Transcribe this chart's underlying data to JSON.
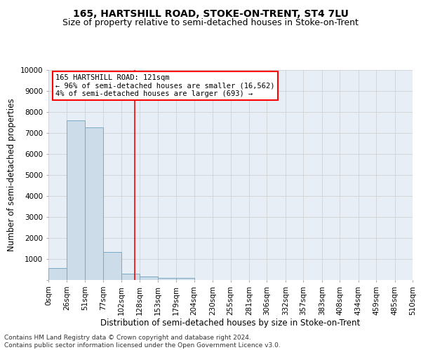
{
  "title": "165, HARTSHILL ROAD, STOKE-ON-TRENT, ST4 7LU",
  "subtitle": "Size of property relative to semi-detached houses in Stoke-on-Trent",
  "xlabel": "Distribution of semi-detached houses by size in Stoke-on-Trent",
  "ylabel": "Number of semi-detached properties",
  "footer": "Contains HM Land Registry data © Crown copyright and database right 2024.\nContains public sector information licensed under the Open Government Licence v3.0.",
  "bins": [
    0,
    26,
    51,
    77,
    102,
    128,
    153,
    179,
    204,
    230,
    255,
    281,
    306,
    332,
    357,
    383,
    408,
    434,
    459,
    485,
    510
  ],
  "bin_labels": [
    "0sqm",
    "26sqm",
    "51sqm",
    "77sqm",
    "102sqm",
    "128sqm",
    "153sqm",
    "179sqm",
    "204sqm",
    "230sqm",
    "255sqm",
    "281sqm",
    "306sqm",
    "332sqm",
    "357sqm",
    "383sqm",
    "408sqm",
    "434sqm",
    "459sqm",
    "485sqm",
    "510sqm"
  ],
  "bar_heights": [
    560,
    7600,
    7250,
    1350,
    310,
    155,
    100,
    90,
    0,
    0,
    0,
    0,
    0,
    0,
    0,
    0,
    0,
    0,
    0,
    0
  ],
  "bar_color": "#ccdce8",
  "bar_edgecolor": "#7aaac8",
  "property_value": 121,
  "property_line_color": "red",
  "annotation_text": "165 HARTSHILL ROAD: 121sqm\n← 96% of semi-detached houses are smaller (16,562)\n4% of semi-detached houses are larger (693) →",
  "ylim": [
    0,
    10000
  ],
  "yticks": [
    0,
    1000,
    2000,
    3000,
    4000,
    5000,
    6000,
    7000,
    8000,
    9000,
    10000
  ],
  "grid_color": "#cccccc",
  "bg_color": "#e8eef5",
  "title_fontsize": 10,
  "subtitle_fontsize": 9,
  "axis_label_fontsize": 8.5,
  "tick_fontsize": 7.5,
  "footer_fontsize": 6.5
}
